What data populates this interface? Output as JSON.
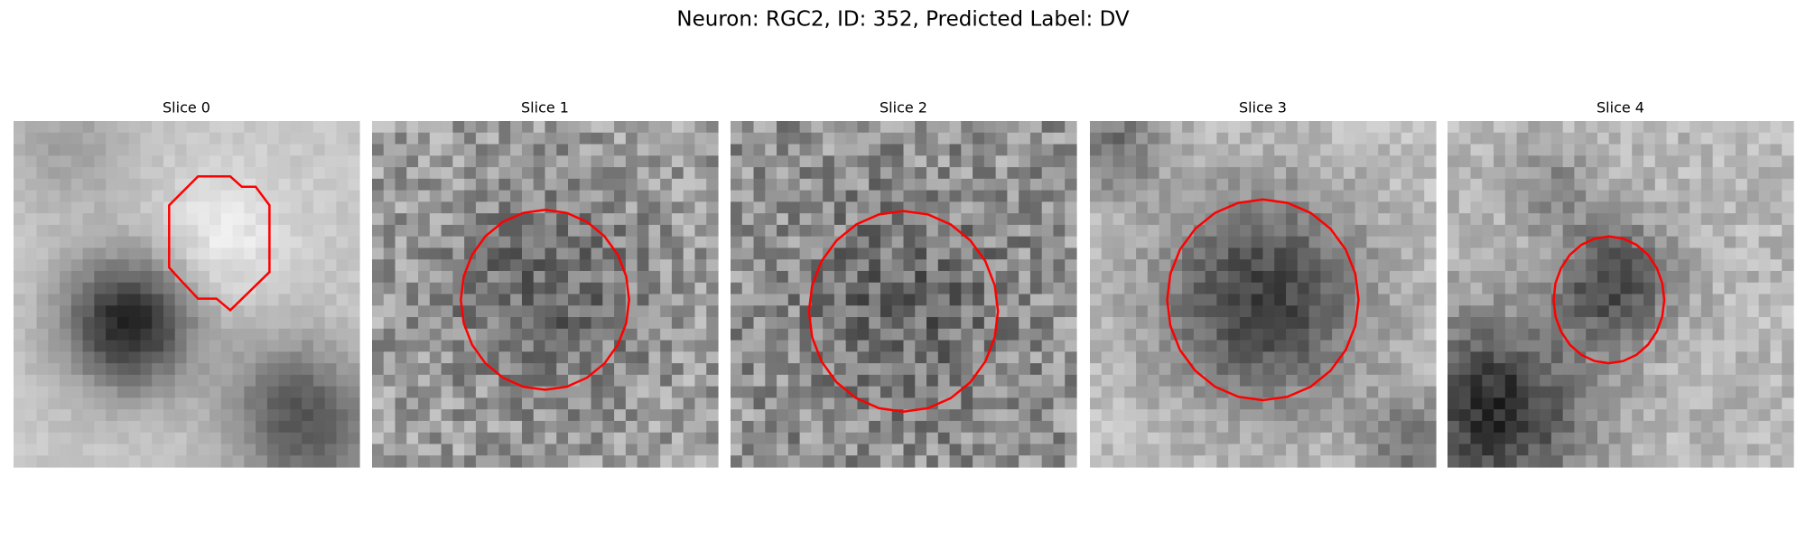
{
  "title": "Neuron: RGC2, ID: 352, Predicted Label: DV",
  "panels": [
    {
      "title": "Slice 0"
    },
    {
      "title": "Slice 1"
    },
    {
      "title": "Slice 2"
    },
    {
      "title": "Slice 3"
    },
    {
      "title": "Slice 4"
    }
  ]
}
